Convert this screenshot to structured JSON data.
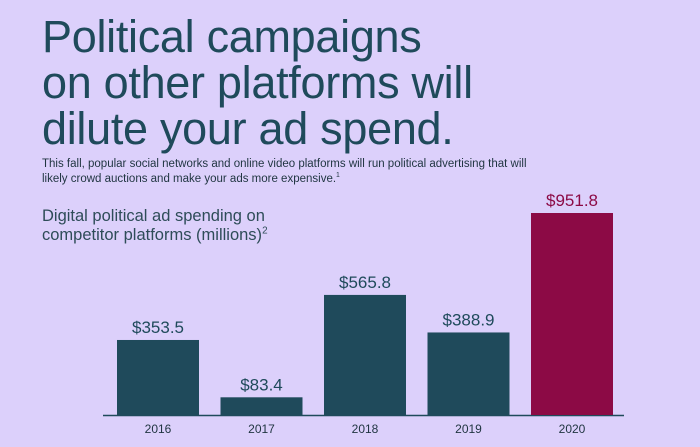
{
  "headline": [
    "Political campaigns",
    "on other platforms will",
    "dilute your ad spend."
  ],
  "subtitle": {
    "text": "This fall, popular social networks and online video platforms will run political advertising that will likely crowd auctions and make your ads more expensive.",
    "footnote": "1"
  },
  "chart_label": {
    "line1": "Digital political ad spending on",
    "line2": "competitor platforms (millions)",
    "footnote": "2"
  },
  "colors": {
    "background": "#dcd0fb",
    "bar": "#1f4a5b",
    "highlight_bar": "#8c0a45",
    "text": "#1f4a5b"
  },
  "chart_data": {
    "type": "bar",
    "title": "Digital political ad spending on competitor platforms (millions)",
    "categories": [
      "2016",
      "2017",
      "2018",
      "2019",
      "2020"
    ],
    "values": [
      353.5,
      83.4,
      565.8,
      388.9,
      951.8
    ],
    "value_labels": [
      "$353.5",
      "$83.4",
      "$565.8",
      "$388.9",
      "$951.8"
    ],
    "highlight_index": 4,
    "ylim": [
      0,
      951.8
    ],
    "grid": false,
    "legend": "none"
  }
}
